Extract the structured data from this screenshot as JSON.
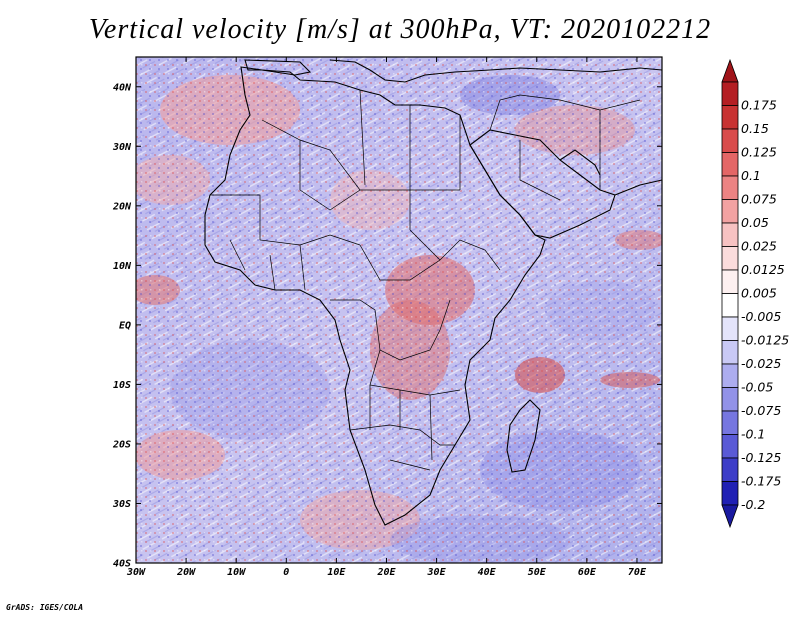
{
  "title": "Vertical velocity [m/s] at 300hPa, VT: 2020102212",
  "footer": "GrADS: IGES/COLA",
  "map": {
    "lon_range": [
      -30,
      75
    ],
    "lat_range": [
      -40,
      45
    ],
    "lon_ticks": [
      {
        "value": -30,
        "label": "30W"
      },
      {
        "value": -20,
        "label": "20W"
      },
      {
        "value": -10,
        "label": "10W"
      },
      {
        "value": 0,
        "label": "0"
      },
      {
        "value": 10,
        "label": "10E"
      },
      {
        "value": 20,
        "label": "20E"
      },
      {
        "value": 30,
        "label": "30E"
      },
      {
        "value": 40,
        "label": "40E"
      },
      {
        "value": 50,
        "label": "50E"
      },
      {
        "value": 60,
        "label": "60E"
      },
      {
        "value": 70,
        "label": "70E"
      }
    ],
    "lat_ticks": [
      {
        "value": 40,
        "label": "40N"
      },
      {
        "value": 30,
        "label": "30N"
      },
      {
        "value": 20,
        "label": "20N"
      },
      {
        "value": 10,
        "label": "10N"
      },
      {
        "value": 0,
        "label": "EQ"
      },
      {
        "value": -10,
        "label": "10S"
      },
      {
        "value": -20,
        "label": "20S"
      },
      {
        "value": -30,
        "label": "30S"
      },
      {
        "value": -40,
        "label": "40S"
      }
    ]
  },
  "colorbar": {
    "levels": [
      {
        "label": "0.175",
        "color": "#b41e23"
      },
      {
        "label": "0.15",
        "color": "#c83232"
      },
      {
        "label": "0.125",
        "color": "#d94b4b"
      },
      {
        "label": "0.1",
        "color": "#e46666"
      },
      {
        "label": "0.075",
        "color": "#ec8383"
      },
      {
        "label": "0.05",
        "color": "#f2a2a2"
      },
      {
        "label": "0.025",
        "color": "#f7c2c2"
      },
      {
        "label": "0.0125",
        "color": "#fbdcdc"
      },
      {
        "label": "0.005",
        "color": "#fdf0f0"
      },
      {
        "label": "-0.005",
        "color": "#ffffff"
      },
      {
        "label": "-0.0125",
        "color": "#e4e4fb"
      },
      {
        "label": "-0.025",
        "color": "#c9c9f5"
      },
      {
        "label": "-0.05",
        "color": "#adadef"
      },
      {
        "label": "-0.075",
        "color": "#9292e8"
      },
      {
        "label": "-0.1",
        "color": "#7676e0"
      },
      {
        "label": "-0.125",
        "color": "#5a5ad6"
      },
      {
        "label": "-0.175",
        "color": "#3d3dc8"
      },
      {
        "label": "-0.2",
        "color": "#2020b4"
      }
    ],
    "top_color": "#a01419",
    "bottom_color": "#1a1aa0"
  }
}
